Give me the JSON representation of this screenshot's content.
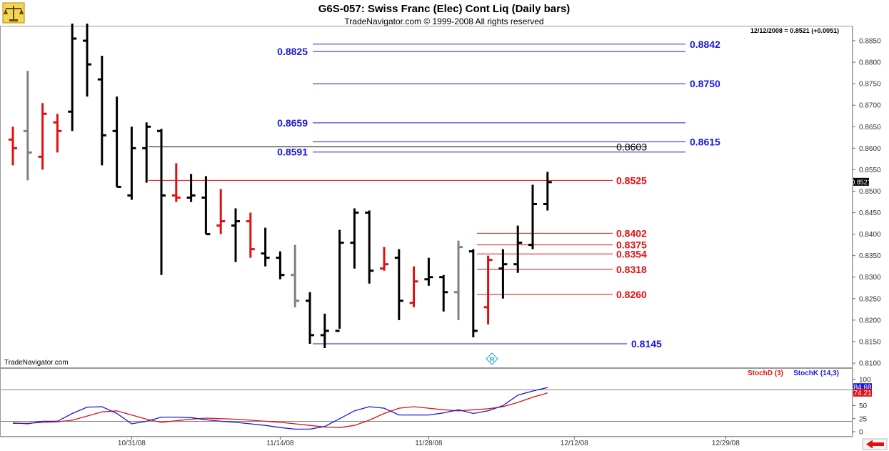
{
  "header": {
    "title": "G6S-057:  Swiss Franc (Elec) Cont Liq  (Daily bars)",
    "copyright": "TradeNavigator.com © 1999-2008 All rights reserved",
    "last_quote": "12/12/2008 = 0.8521 (+0.0051)",
    "watermark": "TradeNavigator.com"
  },
  "colors": {
    "up_bar": "#000000",
    "down_bar": "#e01010",
    "neutral_bar": "#808080",
    "blue_level": "#1a1adc",
    "red_level": "#e01010",
    "black_level": "#000000",
    "stochD": "#e01010",
    "stochK": "#1a1adc",
    "exit_arrow": "#e01010"
  },
  "chart_data": [
    {
      "type": "ohlc",
      "title": "Swiss Franc (Elec) Cont Liq  (Daily bars)",
      "ylim": [
        0.81,
        0.889
      ],
      "y_ticks": [
        "0.8100",
        "0.8150",
        "0.8200",
        "0.8250",
        "0.8300",
        "0.8350",
        "0.8400",
        "0.8450",
        "0.8500",
        "0.8550",
        "0.8600",
        "0.8650",
        "0.8700",
        "0.8750",
        "0.8800",
        "0.8850"
      ],
      "x_ticks": [
        "10/31/08",
        "11/14/08",
        "11/28/08",
        "12/12/08",
        "12/29/08"
      ],
      "last_price_label": "0.8521",
      "bars": [
        {
          "date": "10/21/08",
          "o": 0.862,
          "h": 0.865,
          "l": 0.856,
          "c": 0.86,
          "k": "down"
        },
        {
          "date": "10/22/08",
          "o": 0.864,
          "h": 0.878,
          "l": 0.8525,
          "c": 0.859,
          "k": "neutral"
        },
        {
          "date": "10/23/08",
          "o": 0.858,
          "h": 0.8705,
          "l": 0.855,
          "c": 0.868,
          "k": "down"
        },
        {
          "date": "10/24/08",
          "o": 0.866,
          "h": 0.868,
          "l": 0.859,
          "c": 0.864,
          "k": "down"
        },
        {
          "date": "10/27/08",
          "o": 0.8685,
          "h": 0.889,
          "l": 0.864,
          "c": 0.8855,
          "k": "up"
        },
        {
          "date": "10/28/08",
          "o": 0.885,
          "h": 0.889,
          "l": 0.872,
          "c": 0.8795,
          "k": "up"
        },
        {
          "date": "10/29/08",
          "o": 0.876,
          "h": 0.8815,
          "l": 0.856,
          "c": 0.863,
          "k": "up"
        },
        {
          "date": "10/30/08",
          "o": 0.864,
          "h": 0.872,
          "l": 0.851,
          "c": 0.851,
          "k": "up"
        },
        {
          "date": "10/31/08",
          "o": 0.849,
          "h": 0.865,
          "l": 0.848,
          "c": 0.86,
          "k": "up"
        },
        {
          "date": "11/03/08",
          "o": 0.86,
          "h": 0.866,
          "l": 0.852,
          "c": 0.865,
          "k": "up"
        },
        {
          "date": "11/04/08",
          "o": 0.864,
          "h": 0.8645,
          "l": 0.8305,
          "c": 0.849,
          "k": "up"
        },
        {
          "date": "11/05/08",
          "o": 0.849,
          "h": 0.8565,
          "l": 0.8475,
          "c": 0.8485,
          "k": "down"
        },
        {
          "date": "11/06/08",
          "o": 0.8485,
          "h": 0.854,
          "l": 0.8475,
          "c": 0.849,
          "k": "up"
        },
        {
          "date": "11/07/08",
          "o": 0.8485,
          "h": 0.8535,
          "l": 0.84,
          "c": 0.84,
          "k": "up"
        },
        {
          "date": "11/10/08",
          "o": 0.842,
          "h": 0.8505,
          "l": 0.84,
          "c": 0.843,
          "k": "down"
        },
        {
          "date": "11/11/08",
          "o": 0.842,
          "h": 0.846,
          "l": 0.8335,
          "c": 0.843,
          "k": "up"
        },
        {
          "date": "11/12/08",
          "o": 0.843,
          "h": 0.845,
          "l": 0.8345,
          "c": 0.8365,
          "k": "down"
        },
        {
          "date": "11/13/08",
          "o": 0.8355,
          "h": 0.8415,
          "l": 0.8325,
          "c": 0.8345,
          "k": "up"
        },
        {
          "date": "11/14/08",
          "o": 0.8345,
          "h": 0.836,
          "l": 0.8295,
          "c": 0.8305,
          "k": "up"
        },
        {
          "date": "11/17/08",
          "o": 0.8305,
          "h": 0.8375,
          "l": 0.823,
          "c": 0.8245,
          "k": "neutral"
        },
        {
          "date": "11/18/08",
          "o": 0.8245,
          "h": 0.8265,
          "l": 0.8145,
          "c": 0.8165,
          "k": "up"
        },
        {
          "date": "11/19/08",
          "o": 0.8165,
          "h": 0.8215,
          "l": 0.8135,
          "c": 0.8175,
          "k": "up"
        },
        {
          "date": "11/20/08",
          "o": 0.8175,
          "h": 0.841,
          "l": 0.818,
          "c": 0.838,
          "k": "up"
        },
        {
          "date": "11/21/08",
          "o": 0.838,
          "h": 0.846,
          "l": 0.832,
          "c": 0.845,
          "k": "up"
        },
        {
          "date": "11/24/08",
          "o": 0.845,
          "h": 0.8455,
          "l": 0.8285,
          "c": 0.8315,
          "k": "up"
        },
        {
          "date": "11/25/08",
          "o": 0.832,
          "h": 0.837,
          "l": 0.8315,
          "c": 0.833,
          "k": "down"
        },
        {
          "date": "11/26/08",
          "o": 0.8345,
          "h": 0.8365,
          "l": 0.82,
          "c": 0.8245,
          "k": "up"
        },
        {
          "date": "11/28/08",
          "o": 0.824,
          "h": 0.8325,
          "l": 0.823,
          "c": 0.829,
          "k": "down"
        },
        {
          "date": "12/01/08",
          "o": 0.8295,
          "h": 0.8345,
          "l": 0.828,
          "c": 0.83,
          "k": "up"
        },
        {
          "date": "12/02/08",
          "o": 0.83,
          "h": 0.8305,
          "l": 0.822,
          "c": 0.8265,
          "k": "up"
        },
        {
          "date": "12/03/08",
          "o": 0.8265,
          "h": 0.8385,
          "l": 0.82,
          "c": 0.837,
          "k": "neutral"
        },
        {
          "date": "12/04/08",
          "o": 0.836,
          "h": 0.8365,
          "l": 0.816,
          "c": 0.8175,
          "k": "up"
        },
        {
          "date": "12/05/08",
          "o": 0.823,
          "h": 0.835,
          "l": 0.819,
          "c": 0.834,
          "k": "down"
        },
        {
          "date": "12/08/08",
          "o": 0.832,
          "h": 0.8365,
          "l": 0.825,
          "c": 0.833,
          "k": "up"
        },
        {
          "date": "12/09/08",
          "o": 0.833,
          "h": 0.842,
          "l": 0.831,
          "c": 0.838,
          "k": "up"
        },
        {
          "date": "12/10/08",
          "o": 0.8375,
          "h": 0.8515,
          "l": 0.8365,
          "c": 0.847,
          "k": "up"
        },
        {
          "date": "12/11/08",
          "o": 0.847,
          "h": 0.8545,
          "l": 0.8455,
          "c": 0.8521,
          "k": "up"
        }
      ],
      "levels": [
        {
          "value": 0.8842,
          "label": "0.8842",
          "color": "blue"
        },
        {
          "value": 0.8825,
          "label": "0.8825",
          "color": "blue"
        },
        {
          "value": 0.875,
          "label": "0.8750",
          "color": "blue"
        },
        {
          "value": 0.8659,
          "label": "0.8659",
          "color": "blue"
        },
        {
          "value": 0.8615,
          "label": "0.8615",
          "color": "blue"
        },
        {
          "value": 0.8603,
          "label": "0.8603",
          "color": "black"
        },
        {
          "value": 0.8591,
          "label": "0.8591",
          "color": "blue"
        },
        {
          "value": 0.8525,
          "label": "0.8525",
          "color": "red"
        },
        {
          "value": 0.8402,
          "label": "0.8402",
          "color": "red"
        },
        {
          "value": 0.8375,
          "label": "0.8375",
          "color": "red"
        },
        {
          "value": 0.8354,
          "label": "0.8354",
          "color": "red"
        },
        {
          "value": 0.8318,
          "label": "0.8318",
          "color": "red"
        },
        {
          "value": 0.826,
          "label": "0.8260",
          "color": "red"
        },
        {
          "value": 0.8145,
          "label": "0.8145",
          "color": "blue"
        }
      ]
    },
    {
      "type": "line",
      "title": "",
      "ylim": [
        0,
        100
      ],
      "y_ticks": [
        "0",
        "25",
        "50",
        "75",
        "100"
      ],
      "hlines": [
        80,
        20
      ],
      "series": [
        {
          "name": "StochD (3)",
          "color": "#e01010",
          "values": [
            16,
            16,
            18,
            19,
            22,
            30,
            38,
            40,
            32,
            24,
            18,
            21,
            24,
            26,
            25,
            24,
            22,
            20,
            18,
            15,
            12,
            9,
            8,
            12,
            22,
            35,
            45,
            48,
            45,
            42,
            40,
            42,
            44,
            48,
            56,
            66,
            74.21
          ]
        },
        {
          "name": "StochK (14,3)",
          "color": "#1a1adc",
          "values": [
            17,
            15,
            20,
            20,
            35,
            47,
            48,
            35,
            15,
            20,
            28,
            28,
            27,
            23,
            20,
            18,
            15,
            12,
            8,
            5,
            5,
            10,
            25,
            40,
            48,
            45,
            32,
            32,
            32,
            36,
            42,
            35,
            40,
            50,
            70,
            78,
            84.68
          ]
        }
      ],
      "last_labels": [
        "84.68",
        "74.21"
      ]
    }
  ]
}
